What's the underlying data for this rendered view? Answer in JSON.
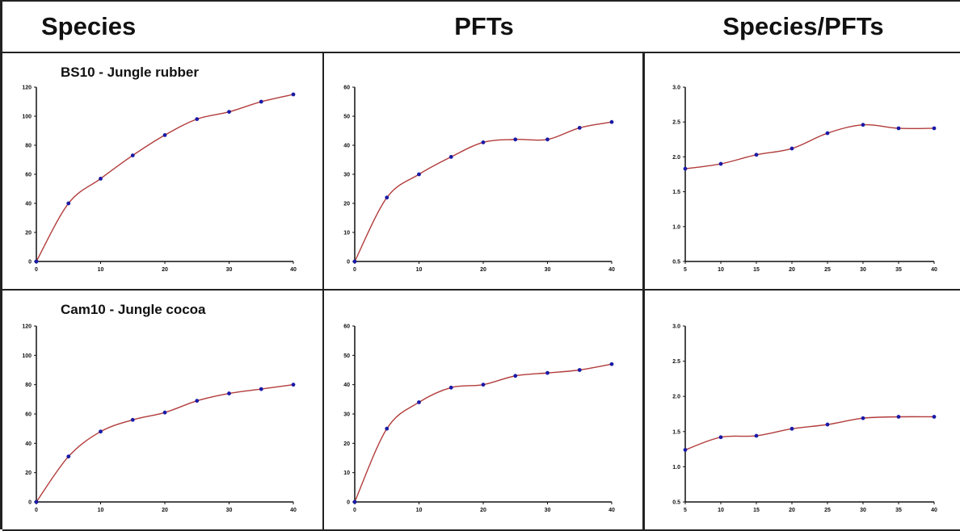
{
  "headers": [
    "Species",
    "PFTs",
    "Species/PFTs"
  ],
  "row_titles": [
    "BS10 - Jungle rubber",
    "Cam10 - Jungle cocoa"
  ],
  "colors": {
    "line": "#b23b3b",
    "marker": "#1a1aa6",
    "axis": "#111111"
  },
  "chart_data": [
    {
      "type": "line",
      "title": "BS10 - Jungle rubber",
      "xlabel": "",
      "ylabel": "",
      "x": [
        0,
        5,
        10,
        15,
        20,
        25,
        30,
        35,
        40
      ],
      "y": [
        0,
        40,
        57,
        73,
        87,
        98,
        103,
        110,
        115
      ],
      "xlim": [
        0,
        40
      ],
      "ylim": [
        0,
        120
      ],
      "xticks": [
        "0",
        "10",
        "20",
        "30",
        "40"
      ],
      "yticks": [
        "0",
        "20",
        "40",
        "60",
        "80",
        "100",
        "120"
      ],
      "grid": false
    },
    {
      "type": "line",
      "title": "",
      "xlabel": "",
      "ylabel": "",
      "x": [
        0,
        5,
        10,
        15,
        20,
        25,
        30,
        35,
        40
      ],
      "y": [
        0,
        22,
        30,
        36,
        41,
        42,
        42,
        46,
        48
      ],
      "xlim": [
        0,
        40
      ],
      "ylim": [
        0,
        60
      ],
      "xticks": [
        "0",
        "10",
        "20",
        "30",
        "40"
      ],
      "yticks": [
        "0",
        "10",
        "20",
        "30",
        "40",
        "50",
        "60"
      ],
      "grid": false
    },
    {
      "type": "line",
      "title": "",
      "xlabel": "",
      "ylabel": "",
      "x": [
        5,
        10,
        15,
        20,
        25,
        30,
        35,
        40
      ],
      "y": [
        1.83,
        1.9,
        2.03,
        2.12,
        2.34,
        2.46,
        2.41,
        2.41
      ],
      "xlim": [
        5,
        40
      ],
      "ylim": [
        0.5,
        3.0
      ],
      "xticks": [
        "5",
        "10",
        "15",
        "20",
        "25",
        "30",
        "35",
        "40"
      ],
      "yticks": [
        "0.5",
        "1.0",
        "1.5",
        "2.0",
        "2.5",
        "3.0"
      ],
      "grid": false
    },
    {
      "type": "line",
      "title": "Cam10 - Jungle cocoa",
      "xlabel": "",
      "ylabel": "",
      "x": [
        0,
        5,
        10,
        15,
        20,
        25,
        30,
        35,
        40
      ],
      "y": [
        0,
        31,
        48,
        56,
        61,
        69,
        74,
        77,
        80
      ],
      "xlim": [
        0,
        40
      ],
      "ylim": [
        0,
        120
      ],
      "xticks": [
        "0",
        "10",
        "20",
        "30",
        "40"
      ],
      "yticks": [
        "0",
        "20",
        "40",
        "60",
        "80",
        "100",
        "120"
      ],
      "grid": false
    },
    {
      "type": "line",
      "title": "",
      "xlabel": "",
      "ylabel": "",
      "x": [
        0,
        5,
        10,
        15,
        20,
        25,
        30,
        35,
        40
      ],
      "y": [
        0,
        25,
        34,
        39,
        40,
        43,
        44,
        45,
        47
      ],
      "xlim": [
        0,
        40
      ],
      "ylim": [
        0,
        60
      ],
      "xticks": [
        "0",
        "10",
        "20",
        "30",
        "40"
      ],
      "yticks": [
        "0",
        "10",
        "20",
        "30",
        "40",
        "50",
        "60"
      ],
      "grid": false
    },
    {
      "type": "line",
      "title": "",
      "xlabel": "",
      "ylabel": "",
      "x": [
        5,
        10,
        15,
        20,
        25,
        30,
        35,
        40
      ],
      "y": [
        1.24,
        1.42,
        1.44,
        1.54,
        1.6,
        1.69,
        1.71,
        1.71
      ],
      "xlim": [
        5,
        40
      ],
      "ylim": [
        0.5,
        3.0
      ],
      "xticks": [
        "5",
        "10",
        "15",
        "20",
        "25",
        "30",
        "35",
        "40"
      ],
      "yticks": [
        "0.5",
        "1.0",
        "1.5",
        "2.0",
        "2.5",
        "3.0"
      ],
      "grid": false
    }
  ]
}
